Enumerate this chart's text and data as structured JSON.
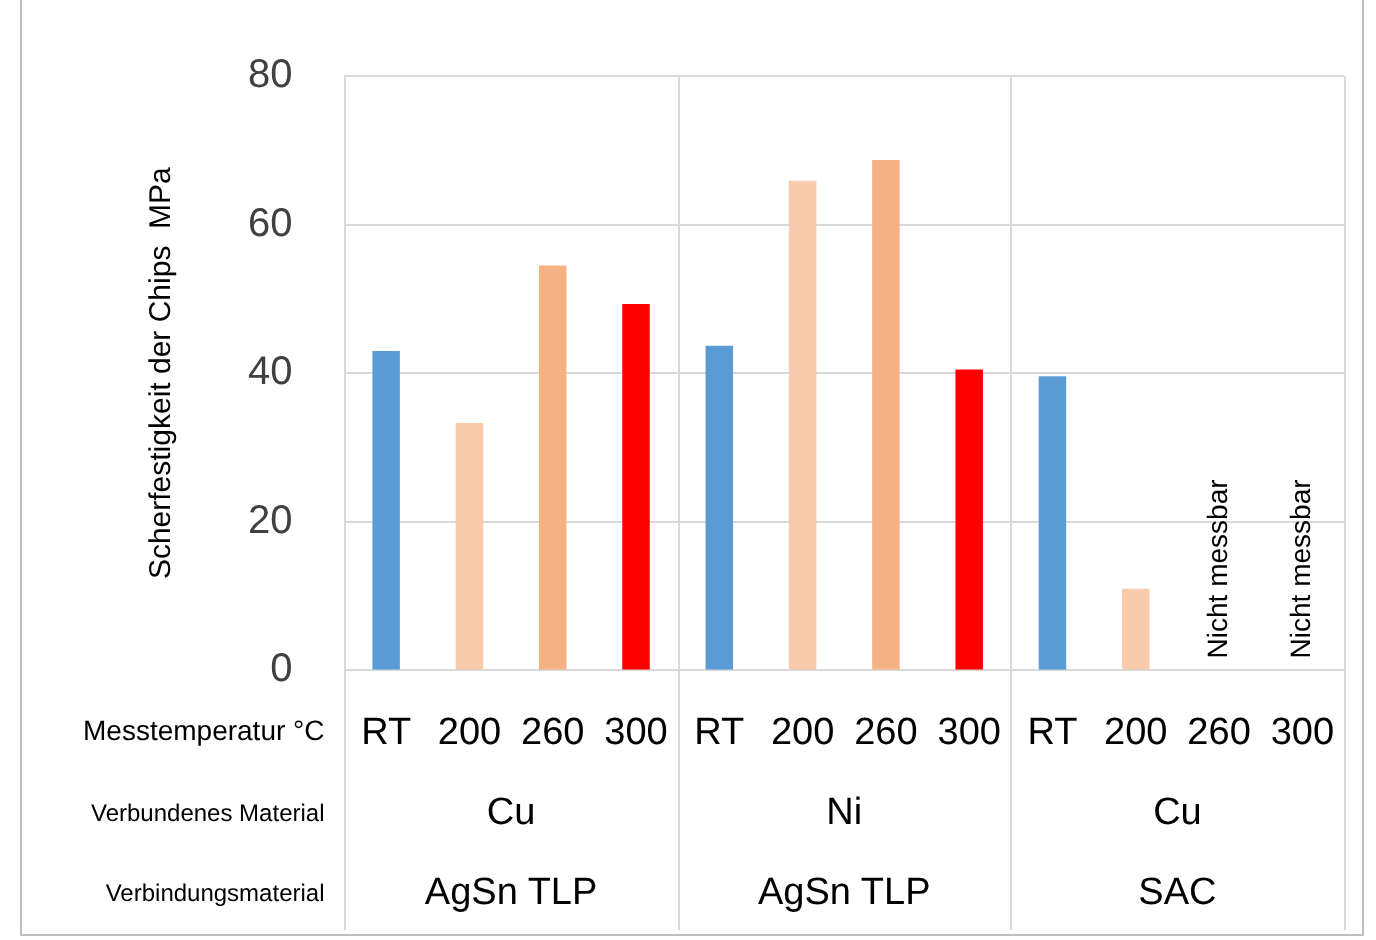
{
  "chart_data": {
    "type": "bar",
    "ylabel": "Scherfestigkeit der Chips  MPa",
    "xlabel": "Messtemperatur °C",
    "categories": [
      "RT",
      "200",
      "260",
      "300",
      "RT",
      "200",
      "260",
      "300",
      "RT",
      "200",
      "260",
      "300"
    ],
    "values": [
      43.0,
      33.3,
      54.5,
      49.3,
      43.7,
      65.9,
      68.7,
      40.5,
      39.6,
      11.0,
      null,
      null
    ],
    "colors": [
      "#5b9bd5",
      "#f8cbad",
      "#f4b183",
      "#ff0000",
      "#5b9bd5",
      "#f8cbad",
      "#f4b183",
      "#ff0000",
      "#5b9bd5",
      "#f8cbad",
      "#f4b183",
      "#ff0000"
    ],
    "ylim": [
      0,
      80
    ],
    "yticks": [
      0,
      20,
      40,
      60,
      80
    ],
    "grid": "y",
    "legend": false,
    "annotations": [
      "Nicht messbar",
      "Nicht messbar",
      "Verbundenes Material",
      "Cu",
      "Ni",
      "Cu",
      "Verbindungsmaterial",
      "AgSn TLP",
      "AgSn TLP",
      "SAC"
    ]
  }
}
